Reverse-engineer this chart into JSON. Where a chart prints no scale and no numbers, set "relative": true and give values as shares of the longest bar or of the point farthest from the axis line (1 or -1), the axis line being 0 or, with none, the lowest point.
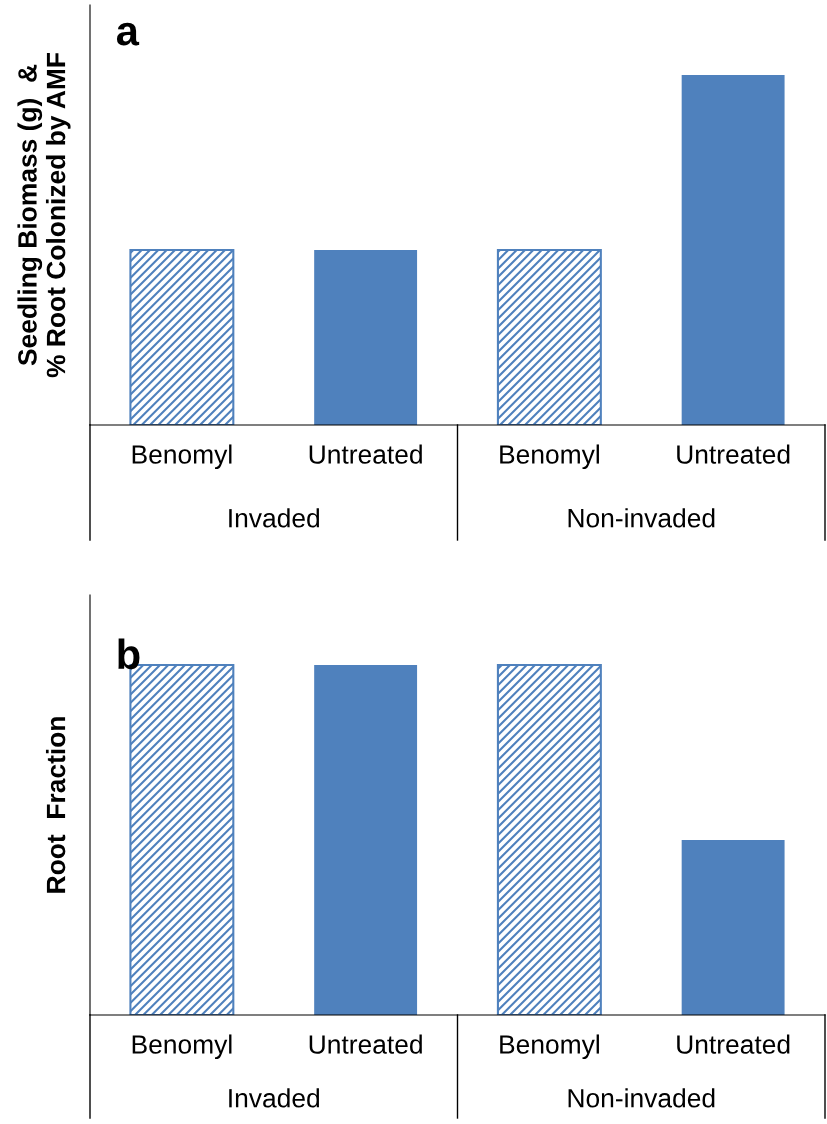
{
  "chart_data": [
    {
      "type": "bar",
      "title": "a",
      "ylabel": "Seedling Biomass (g)  &\n% Root Colonized by AMF",
      "relative": true,
      "categories": [
        "Benomyl",
        "Untreated",
        "Benomyl",
        "Untreated"
      ],
      "annotations": [
        "Invaded",
        "Non-invaded"
      ],
      "series": [
        {
          "color": "#4f81bd",
          "values": [
            0.5,
            null,
            0.5,
            null
          ]
        },
        {
          "color": "#4f81bd",
          "values": [
            null,
            0.5,
            null,
            1
          ]
        }
      ]
    },
    {
      "type": "bar",
      "title": "b",
      "ylabel": "Root  Fraction",
      "relative": true,
      "categories": [
        "Benomyl",
        "Untreated",
        "Benomyl",
        "Untreated"
      ],
      "annotations": [
        "Invaded",
        "Non-invaded"
      ],
      "series": [
        {
          "color": "#4f81bd",
          "values": [
            1,
            null,
            1,
            null
          ]
        },
        {
          "color": "#4f81bd",
          "values": [
            null,
            1,
            null,
            0.5
          ]
        }
      ]
    }
  ]
}
